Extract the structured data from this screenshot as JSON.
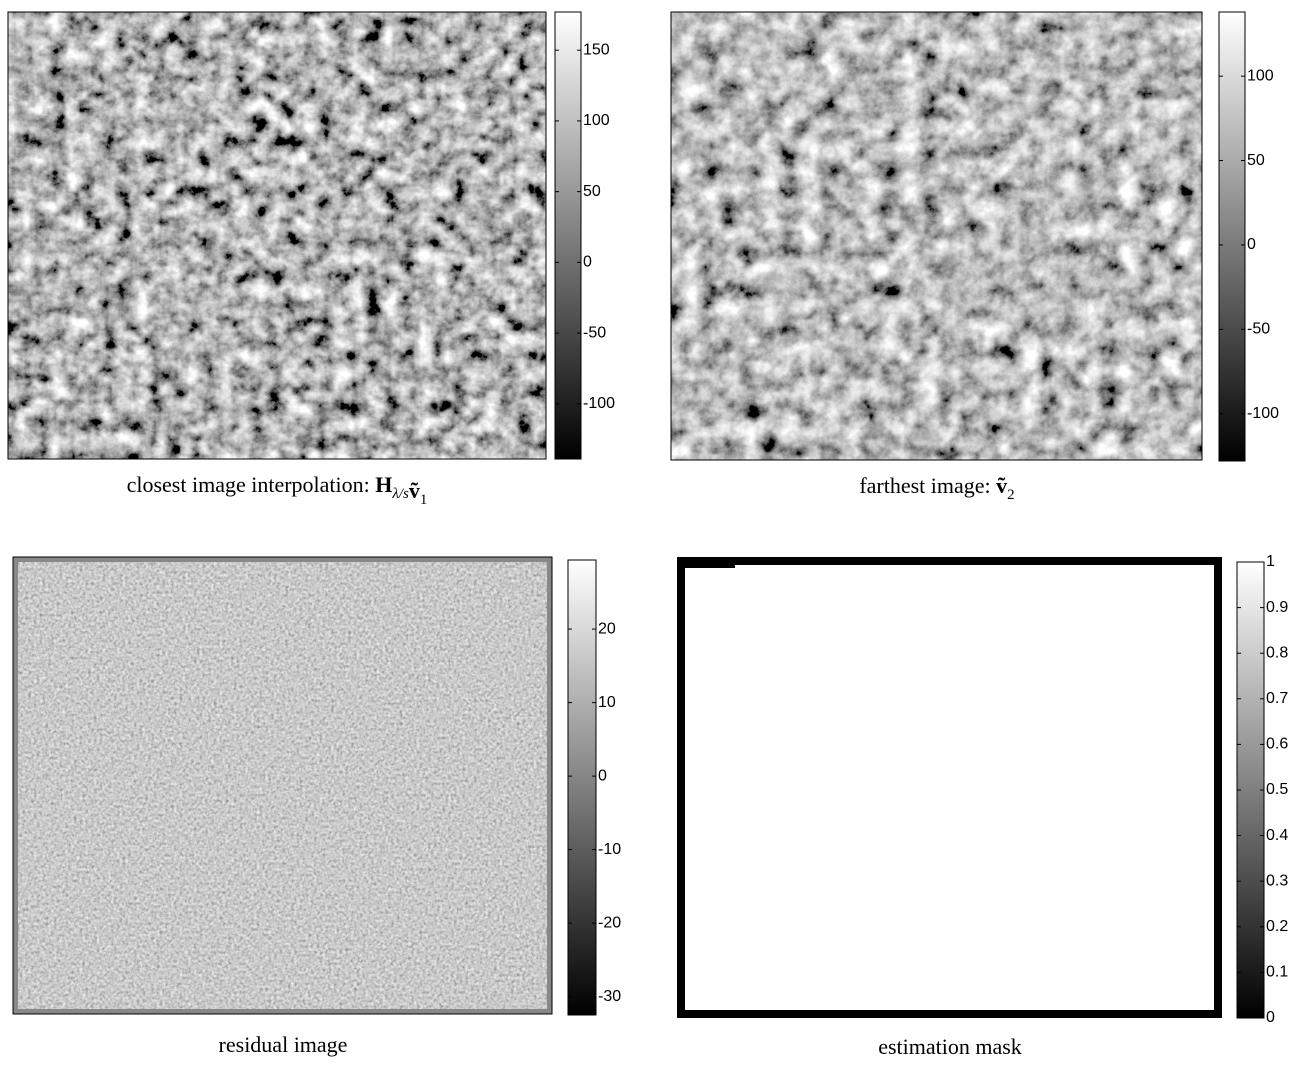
{
  "chart_data": [
    {
      "type": "image",
      "caption": "closest image interpolation: ",
      "symbol": "H",
      "symbol_sub": "λ/s",
      "symbol2": "ṽ",
      "symbol2_sub": "1",
      "ylim": [
        -139,
        177
      ],
      "yticks": [
        -100,
        -50,
        0,
        50,
        100,
        150
      ]
    },
    {
      "type": "image",
      "caption": "farthest image: ",
      "symbol2": "ṽ",
      "symbol2_sub": "2",
      "ylim": [
        -128,
        138
      ],
      "yticks": [
        -100,
        -50,
        0,
        50,
        100
      ]
    },
    {
      "type": "image",
      "caption": "residual image",
      "ylim": [
        -32.5,
        29.4
      ],
      "yticks": [
        -30,
        -20,
        -10,
        0,
        10,
        20
      ]
    },
    {
      "type": "mask",
      "caption": "estimation mask",
      "ylim": [
        0,
        1
      ],
      "yticks": [
        0,
        0.1,
        0.2,
        0.3,
        0.4,
        0.5,
        0.6,
        0.7,
        0.8,
        0.9,
        1
      ]
    }
  ]
}
